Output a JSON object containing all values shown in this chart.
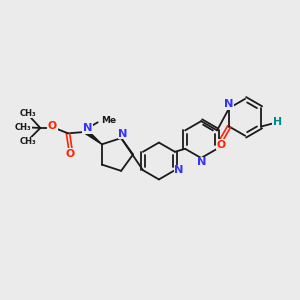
{
  "bg_color": "#ebebeb",
  "bond_color": "#1a1a1a",
  "N_color": "#3333ff",
  "O_color": "#ff2200",
  "OH_color": "#008888",
  "figsize": [
    3.0,
    3.0
  ],
  "dpi": 100,
  "xlim": [
    0.0,
    10.0
  ],
  "ylim": [
    1.5,
    9.0
  ]
}
